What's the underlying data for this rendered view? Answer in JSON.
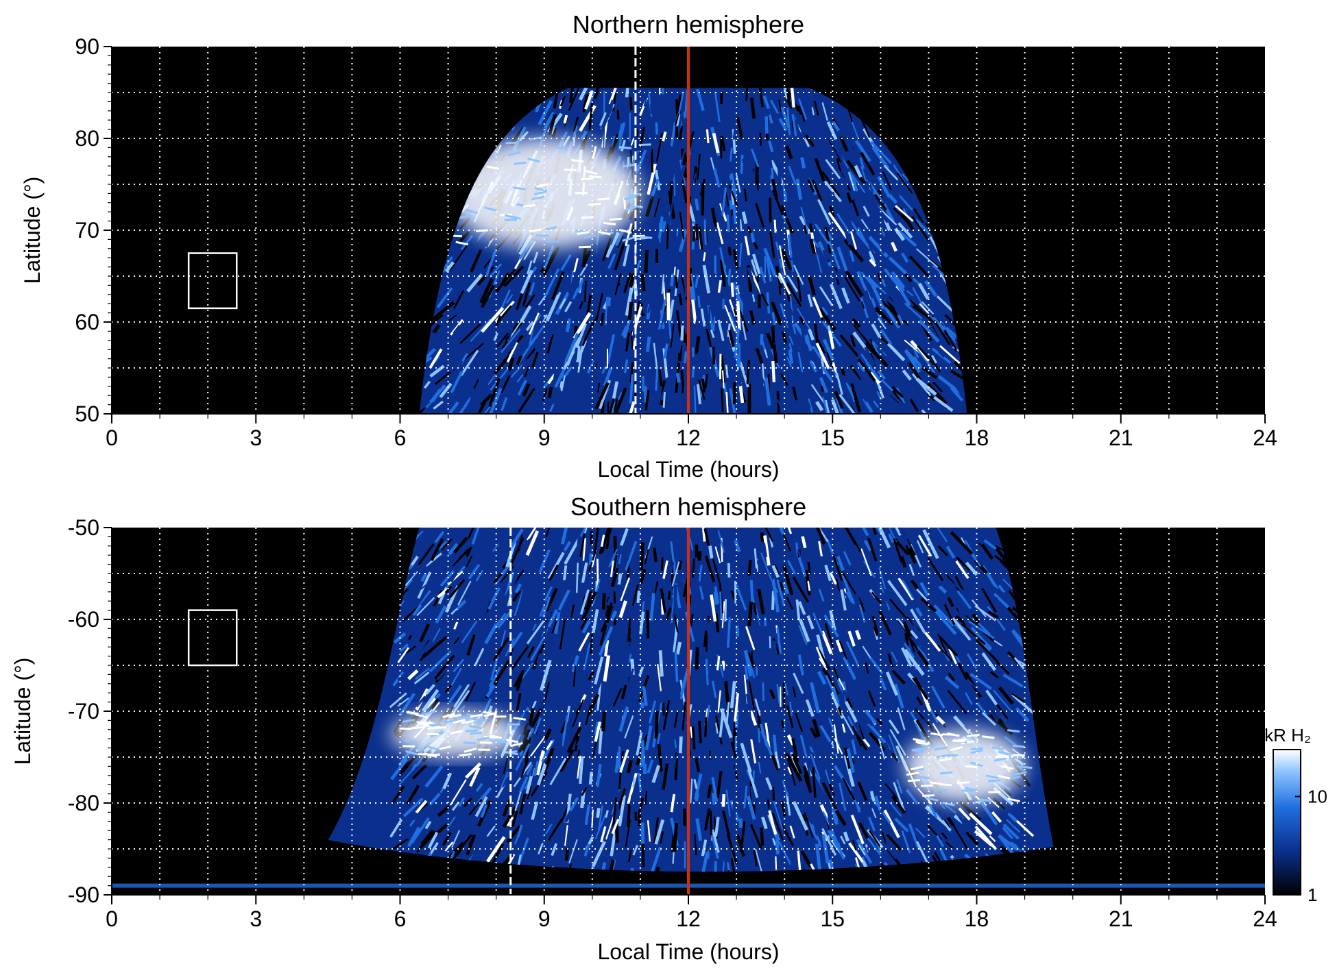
{
  "chart_data": [
    {
      "type": "heatmap",
      "title": "Northern hemisphere",
      "xlabel": "Local Time (hours)",
      "ylabel": "Latitude (°)",
      "xlim": [
        0,
        24
      ],
      "ylim": [
        50,
        90
      ],
      "xticks": [
        "0",
        "3",
        "6",
        "9",
        "12",
        "15",
        "18",
        "21",
        "24"
      ],
      "yticks": [
        "50",
        "60",
        "70",
        "80",
        "90"
      ],
      "grid": true,
      "emission_extent_lt": [
        6.4,
        17.8
      ],
      "emission_top_lat": 87,
      "bright_arc": {
        "lt": [
          7.0,
          11.0
        ],
        "lat": [
          68,
          80
        ]
      },
      "noon_line_lt": 12,
      "dashed_line_lt": 10.9,
      "box": {
        "lt": [
          1.6,
          2.6
        ],
        "lat": [
          61.5,
          67.5
        ]
      }
    },
    {
      "type": "heatmap",
      "title": "Southern hemisphere",
      "xlabel": "Local Time (hours)",
      "ylabel": "Latitude (°)",
      "xlim": [
        0,
        24
      ],
      "ylim": [
        -90,
        -50
      ],
      "xticks": [
        "0",
        "3",
        "6",
        "9",
        "12",
        "15",
        "18",
        "21",
        "24"
      ],
      "yticks": [
        "-50",
        "-60",
        "-70",
        "-80",
        "-90"
      ],
      "grid": true,
      "emission_extent_lt": [
        5.9,
        19.0
      ],
      "bright_arc_left": {
        "lt": [
          5.8,
          8.5
        ],
        "lat": [
          -75,
          -70
        ]
      },
      "bright_arc_right": {
        "lt": [
          16.5,
          19.0
        ],
        "lat": [
          -80,
          -72
        ]
      },
      "noon_line_lt": 12,
      "dashed_line_lt": 8.3,
      "box": {
        "lt": [
          1.6,
          2.6
        ],
        "lat": [
          -65,
          -59
        ]
      }
    }
  ],
  "colorbar": {
    "label": "kR H₂",
    "ticks": [
      "1",
      "10"
    ],
    "range": [
      1,
      30
    ],
    "scale": "log"
  },
  "colors": {
    "background": "#000000",
    "emission_dark": "#0a2f8c",
    "emission_mid": "#1f6fe0",
    "emission_bright": "#8fc4ff",
    "emission_peak": "#ffffff",
    "noon_line": "#cc3010",
    "grid": "#ffffff"
  }
}
